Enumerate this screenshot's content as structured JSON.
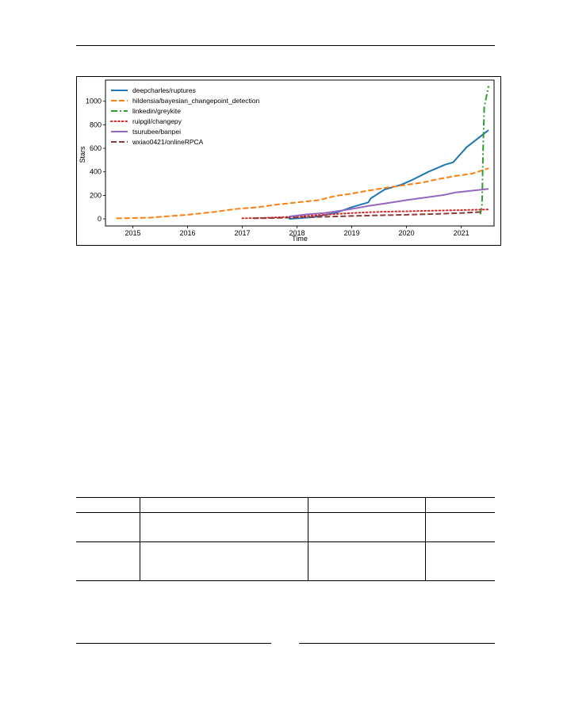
{
  "chart_data": {
    "type": "line",
    "xlabel": "Time",
    "ylabel": "Stars",
    "xlim": [
      2014.5,
      2021.6
    ],
    "ylim": [
      -60,
      1180
    ],
    "x_ticks": [
      2015,
      2016,
      2017,
      2018,
      2019,
      2020,
      2021
    ],
    "x_tick_labels": [
      "2015",
      "2016",
      "2017",
      "2018",
      "2019",
      "2020",
      "2021"
    ],
    "y_ticks": [
      0,
      200,
      400,
      600,
      800,
      1000
    ],
    "y_tick_labels": [
      "0",
      "200",
      "400",
      "600",
      "800",
      "1000"
    ],
    "grid": false,
    "legend_position": "top-left",
    "series": [
      {
        "name": "deepcharles/ruptures",
        "color": "#1f77b4",
        "style": "solid",
        "points": [
          [
            2017.85,
            0
          ],
          [
            2018.3,
            15
          ],
          [
            2018.7,
            50
          ],
          [
            2019.0,
            100
          ],
          [
            2019.3,
            140
          ],
          [
            2019.35,
            175
          ],
          [
            2019.6,
            250
          ],
          [
            2019.9,
            290
          ],
          [
            2020.1,
            330
          ],
          [
            2020.4,
            400
          ],
          [
            2020.7,
            460
          ],
          [
            2020.85,
            480
          ],
          [
            2021.1,
            610
          ],
          [
            2021.35,
            700
          ],
          [
            2021.5,
            755
          ]
        ]
      },
      {
        "name": "hildensia/bayesian_changepoint_detection",
        "color": "#ff7f0e",
        "style": "dashed",
        "points": [
          [
            2014.7,
            5
          ],
          [
            2015.3,
            10
          ],
          [
            2015.7,
            25
          ],
          [
            2016.0,
            35
          ],
          [
            2016.5,
            60
          ],
          [
            2016.9,
            85
          ],
          [
            2017.3,
            100
          ],
          [
            2017.6,
            120
          ],
          [
            2018.0,
            140
          ],
          [
            2018.4,
            160
          ],
          [
            2018.7,
            195
          ],
          [
            2019.0,
            215
          ],
          [
            2019.3,
            240
          ],
          [
            2019.7,
            270
          ],
          [
            2020.0,
            290
          ],
          [
            2020.3,
            310
          ],
          [
            2020.6,
            340
          ],
          [
            2020.9,
            365
          ],
          [
            2021.2,
            385
          ],
          [
            2021.5,
            430
          ]
        ]
      },
      {
        "name": "linkedin/greykite",
        "color": "#2ca02c",
        "style": "dashdot",
        "points": [
          [
            2021.35,
            40
          ],
          [
            2021.38,
            120
          ],
          [
            2021.4,
            600
          ],
          [
            2021.42,
            950
          ],
          [
            2021.5,
            1130
          ]
        ]
      },
      {
        "name": "ruipgil/changepy",
        "color": "#d62728",
        "style": "dotted",
        "points": [
          [
            2017.0,
            5
          ],
          [
            2017.5,
            10
          ],
          [
            2018.0,
            20
          ],
          [
            2018.5,
            35
          ],
          [
            2019.0,
            50
          ],
          [
            2019.5,
            60
          ],
          [
            2020.0,
            65
          ],
          [
            2020.5,
            70
          ],
          [
            2021.0,
            75
          ],
          [
            2021.5,
            80
          ]
        ]
      },
      {
        "name": "tsurubee/banpei",
        "color": "#9467bd",
        "style": "solid",
        "points": [
          [
            2017.85,
            20
          ],
          [
            2018.2,
            40
          ],
          [
            2018.5,
            50
          ],
          [
            2018.8,
            70
          ],
          [
            2019.0,
            85
          ],
          [
            2019.3,
            110
          ],
          [
            2019.6,
            130
          ],
          [
            2020.0,
            160
          ],
          [
            2020.4,
            185
          ],
          [
            2020.7,
            205
          ],
          [
            2020.9,
            225
          ],
          [
            2021.2,
            240
          ],
          [
            2021.5,
            255
          ]
        ]
      },
      {
        "name": "wxiao0421/onlineRPCA",
        "color": "#8c3b3b",
        "style": "dashed",
        "points": [
          [
            2017.2,
            5
          ],
          [
            2017.6,
            8
          ],
          [
            2018.0,
            12
          ],
          [
            2018.5,
            18
          ],
          [
            2019.0,
            25
          ],
          [
            2019.5,
            30
          ],
          [
            2020.0,
            35
          ],
          [
            2020.5,
            42
          ],
          [
            2021.0,
            50
          ],
          [
            2021.4,
            60
          ]
        ]
      }
    ]
  }
}
